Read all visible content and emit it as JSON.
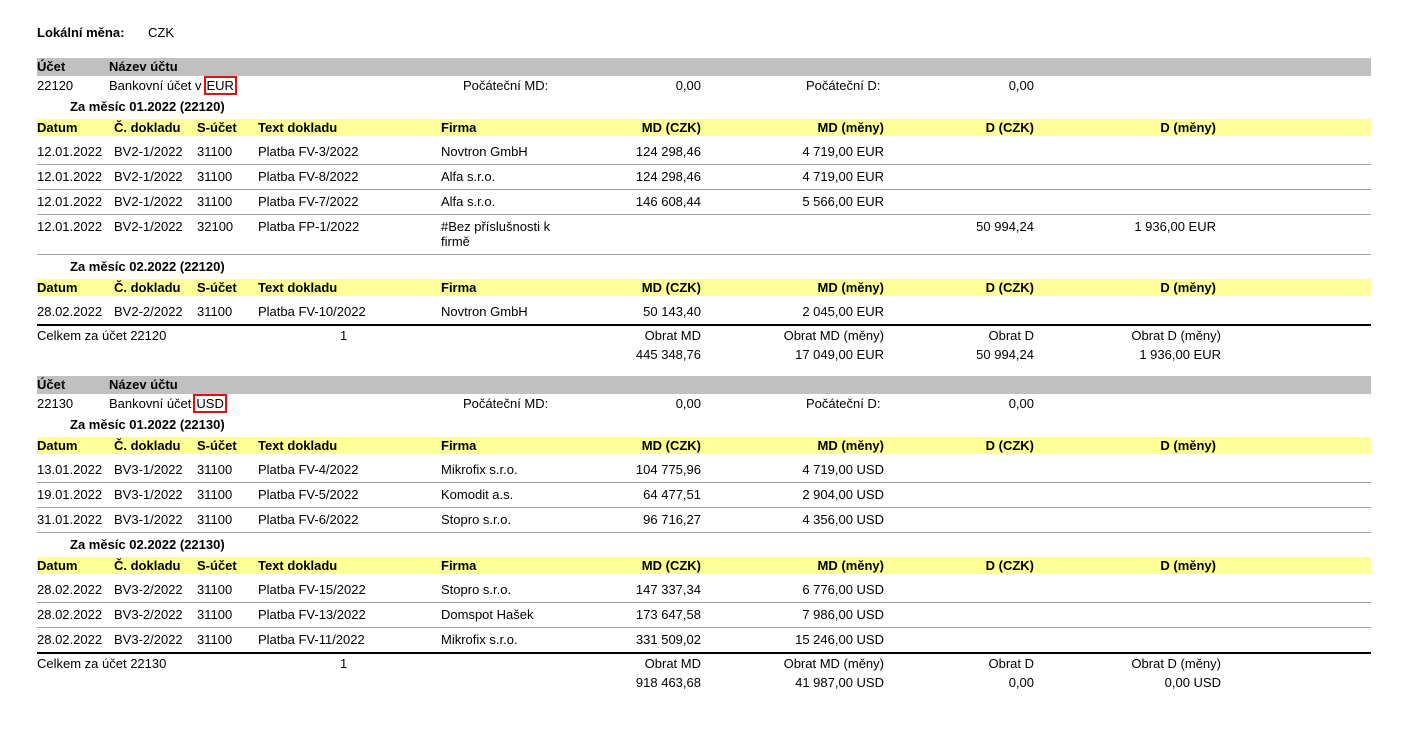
{
  "header": {
    "label": "Lokální měna:",
    "value": "CZK"
  },
  "account_head": [
    "Účet",
    "Název účtu"
  ],
  "columns": [
    "Datum",
    "Č. dokladu",
    "S-účet",
    "Text dokladu",
    "Firma",
    "MD (CZK)",
    "MD (měny)",
    "D (CZK)",
    "D (měny)"
  ],
  "opening_labels": [
    "Počáteční MD:",
    "Počáteční D:"
  ],
  "total_headers": [
    "Obrat MD",
    "Obrat MD (měny)",
    "Obrat D",
    "Obrat D (měny)"
  ],
  "accounts": [
    {
      "number": "22120",
      "name": "Bankovní účet v",
      "currency": "EUR",
      "opening": [
        "0,00",
        "0,00"
      ],
      "months": [
        {
          "title": "Za měsíc 01.2022 (22120)",
          "rows": [
            [
              "12.01.2022",
              "BV2-1/2022",
              "31100",
              "Platba FV-3/2022",
              "Novtron GmbH",
              "124 298,46",
              "4 719,00 EUR",
              null,
              null
            ],
            [
              "12.01.2022",
              "BV2-1/2022",
              "31100",
              "Platba FV-8/2022",
              "Alfa s.r.o.",
              "124 298,46",
              "4 719,00 EUR",
              null,
              null
            ],
            [
              "12.01.2022",
              "BV2-1/2022",
              "31100",
              "Platba FV-7/2022",
              "Alfa s.r.o.",
              "146 608,44",
              "5 566,00 EUR",
              null,
              null
            ],
            [
              "12.01.2022",
              "BV2-1/2022",
              "32100",
              "Platba FP-1/2022",
              "#Bez příslušnosti k firmě",
              null,
              null,
              "50 994,24",
              "1 936,00 EUR"
            ]
          ]
        },
        {
          "title": "Za měsíc 02.2022 (22120)",
          "rows": [
            [
              "28.02.2022",
              "BV2-2/2022",
              "31100",
              "Platba FV-10/2022",
              "Novtron GmbH",
              "50 143,40",
              "2 045,00 EUR",
              null,
              null
            ]
          ]
        }
      ],
      "total": {
        "label": "Celkem za účet 22120",
        "count": "1",
        "values": [
          "445 348,76",
          "17 049,00 EUR",
          "50 994,24",
          "1 936,00 EUR"
        ]
      }
    },
    {
      "number": "22130",
      "name": "Bankovní účet",
      "currency": "USD",
      "opening": [
        "0,00",
        "0,00"
      ],
      "months": [
        {
          "title": "Za měsíc 01.2022 (22130)",
          "rows": [
            [
              "13.01.2022",
              "BV3-1/2022",
              "31100",
              "Platba FV-4/2022",
              "Mikrofix s.r.o.",
              "104 775,96",
              "4 719,00 USD",
              null,
              null
            ],
            [
              "19.01.2022",
              "BV3-1/2022",
              "31100",
              "Platba FV-5/2022",
              "Komodit a.s.",
              "64 477,51",
              "2 904,00 USD",
              null,
              null
            ],
            [
              "31.01.2022",
              "BV3-1/2022",
              "31100",
              "Platba FV-6/2022",
              "Stopro s.r.o.",
              "96 716,27",
              "4 356,00 USD",
              null,
              null
            ]
          ]
        },
        {
          "title": "Za měsíc 02.2022 (22130)",
          "rows": [
            [
              "28.02.2022",
              "BV3-2/2022",
              "31100",
              "Platba FV-15/2022",
              "Stopro s.r.o.",
              "147 337,34",
              "6 776,00 USD",
              null,
              null
            ],
            [
              "28.02.2022",
              "BV3-2/2022",
              "31100",
              "Platba FV-13/2022",
              "Domspot Hašek",
              "173 647,58",
              "7 986,00 USD",
              null,
              null
            ],
            [
              "28.02.2022",
              "BV3-2/2022",
              "31100",
              "Platba FV-11/2022",
              "Mikrofix s.r.o.",
              "331 509,02",
              "15 246,00 USD",
              null,
              null
            ]
          ]
        }
      ],
      "total": {
        "label": "Celkem za účet 22130",
        "count": "1",
        "values": [
          "918 463,68",
          "41 987,00 USD",
          "0,00",
          "0,00 USD"
        ]
      }
    }
  ]
}
